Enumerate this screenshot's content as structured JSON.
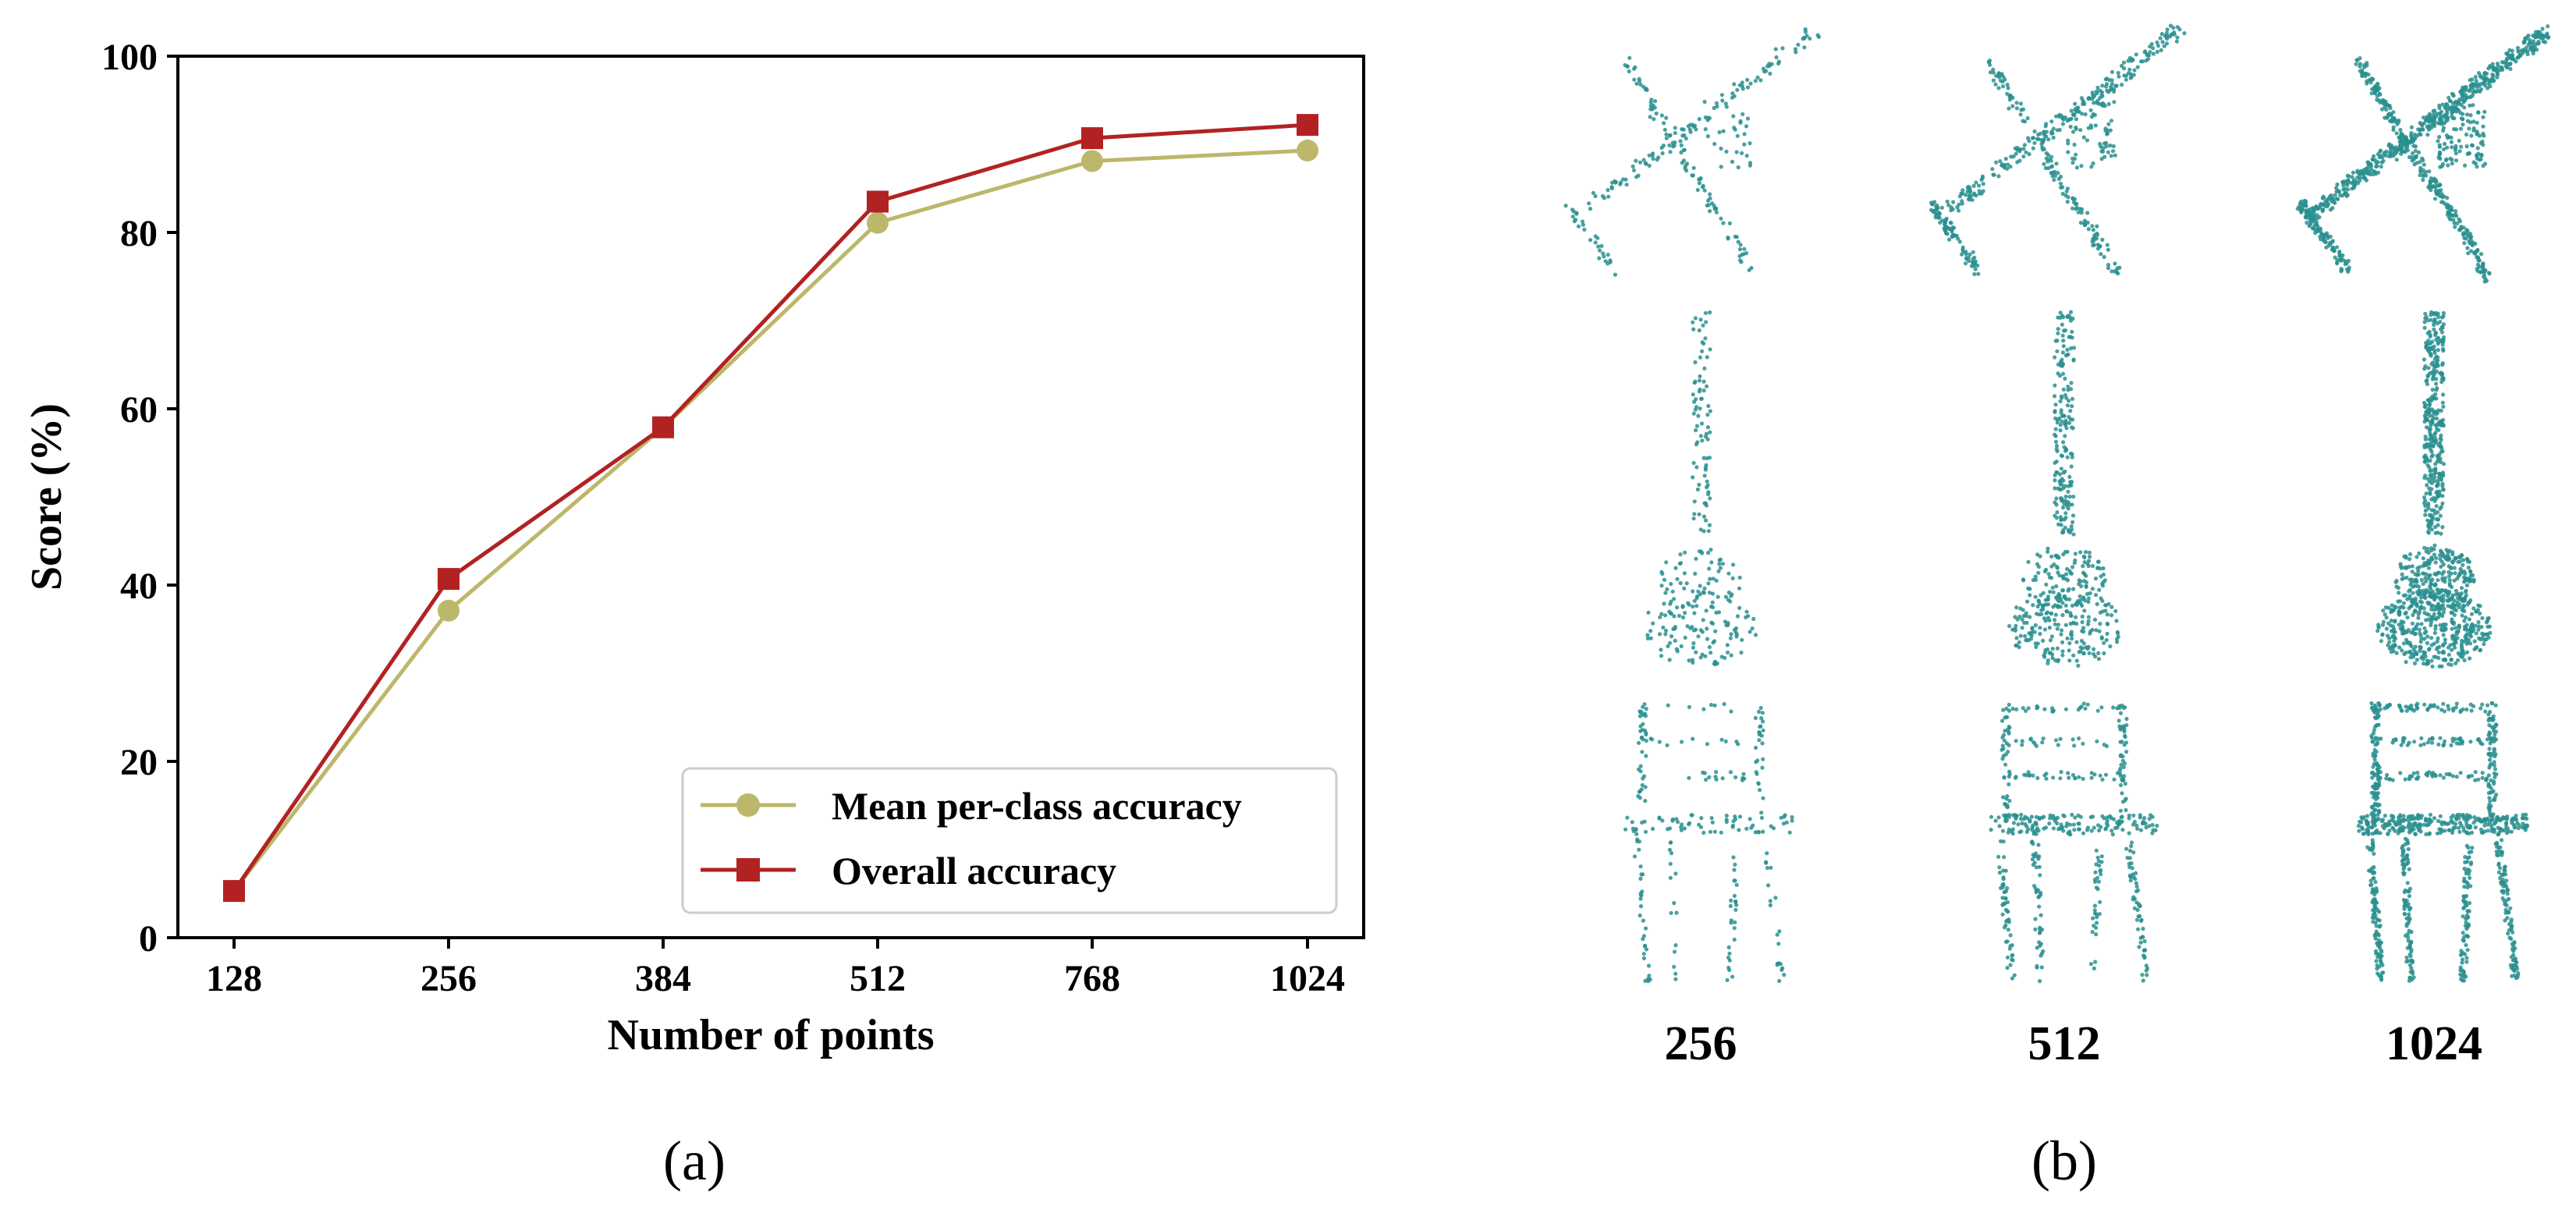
{
  "chart_data": {
    "type": "line",
    "categories": [
      "128",
      "256",
      "384",
      "512",
      "768",
      "1024"
    ],
    "xlabel": "Number of points",
    "ylabel": "Score (%)",
    "ylim": [
      0,
      100
    ],
    "yticks": [
      "0",
      "20",
      "40",
      "60",
      "80",
      "100"
    ],
    "grid": false,
    "legend_position": "bottom-right",
    "series": [
      {
        "name": "Mean per-class accuracy",
        "marker": "circle",
        "color": "#bdb76b",
        "values": [
          5.3,
          37.1,
          57.9,
          81.1,
          88.1,
          89.3
        ]
      },
      {
        "name": "Overall accuracy",
        "marker": "square",
        "color": "#b22222",
        "values": [
          5.3,
          40.7,
          57.9,
          83.5,
          90.7,
          92.2
        ]
      }
    ]
  },
  "panel_a_label": "(a)",
  "panel_b_label": "(b)",
  "point_cloud_panel": {
    "point_color": "#2a8f8f",
    "rows": [
      "airplane",
      "guitar",
      "chair"
    ],
    "columns": [
      "256",
      "512",
      "1024"
    ]
  }
}
